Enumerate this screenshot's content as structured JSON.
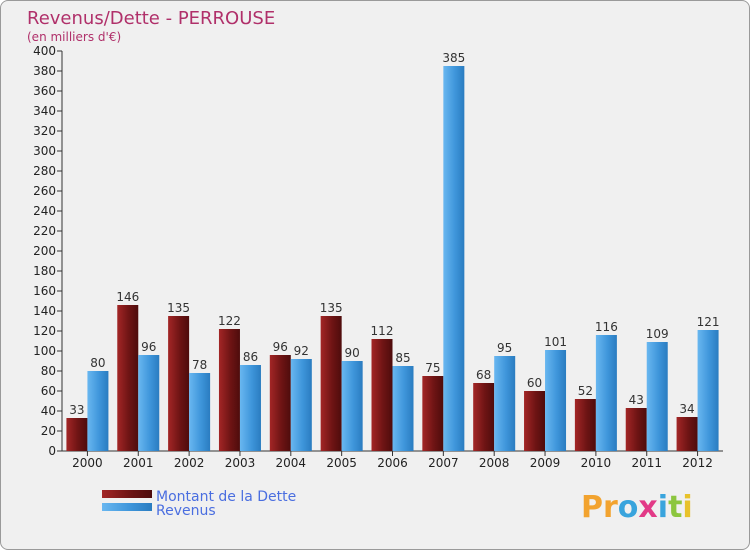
{
  "chart_data": {
    "type": "bar",
    "title": "Revenus/Dette - PERROUSE",
    "subtitle": "(en milliers d'€)",
    "categories": [
      "2000",
      "2001",
      "2002",
      "2003",
      "2004",
      "2005",
      "2006",
      "2007",
      "2008",
      "2009",
      "2010",
      "2011",
      "2012"
    ],
    "series": [
      {
        "name": "Montant de la Dette",
        "color": "#7a1a1a",
        "values": [
          33,
          146,
          135,
          122,
          96,
          135,
          112,
          75,
          68,
          60,
          52,
          43,
          34
        ]
      },
      {
        "name": "Revenus",
        "color": "#4a9fe0",
        "values": [
          80,
          96,
          78,
          86,
          92,
          90,
          85,
          385,
          95,
          101,
          116,
          109,
          121
        ]
      }
    ],
    "ylim": [
      0,
      400
    ],
    "ytick_step": 20,
    "grid": false,
    "legend": "bottom-left"
  },
  "logo": {
    "text": "Proxiti",
    "letters": [
      "P",
      "r",
      "o",
      "x",
      "i",
      "t",
      "i"
    ],
    "colors": [
      "#f2a32f",
      "#f2a32f",
      "#39a4dd",
      "#e23a87",
      "#39a4dd",
      "#8cc63f",
      "#e8c22a"
    ]
  }
}
